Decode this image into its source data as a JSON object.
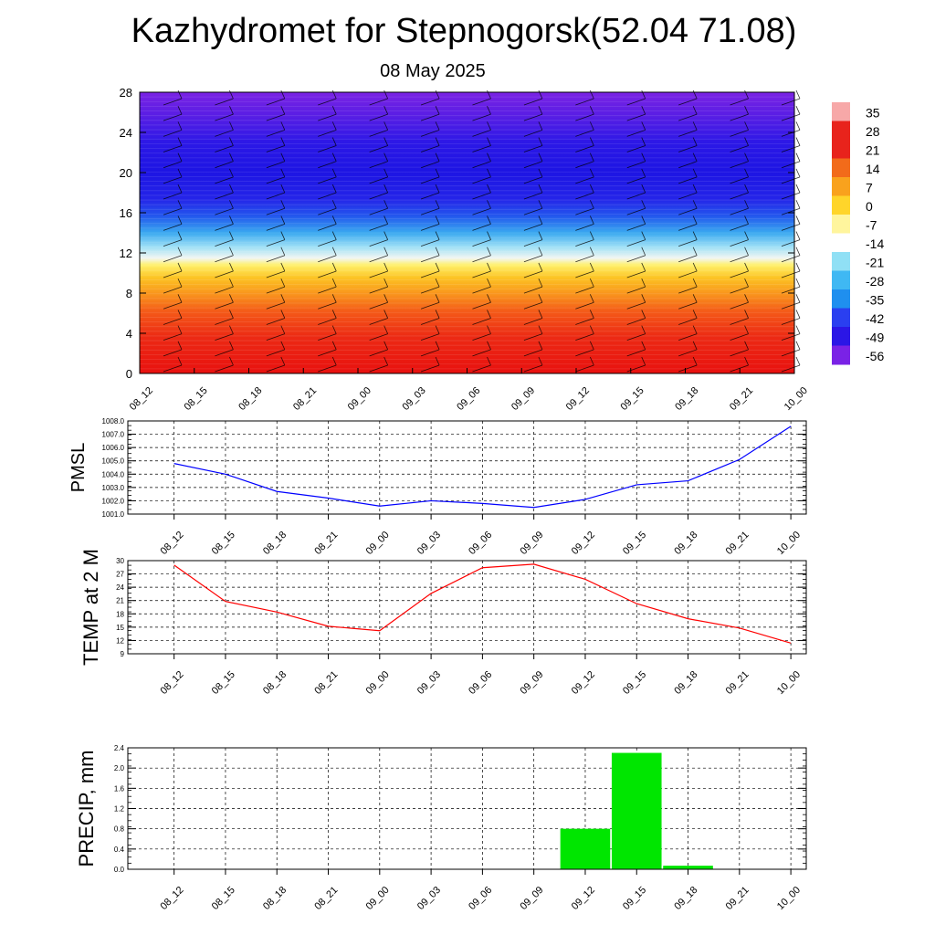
{
  "header": {
    "title": "Kazhydromet for Stepnogorsk(52.04 71.08)",
    "date": "08 May 2025"
  },
  "chart_data": [
    {
      "type": "heatmap",
      "name": "vertical-section",
      "y_ticks": [
        "0",
        "4",
        "8",
        "12",
        "16",
        "20",
        "24",
        "28"
      ],
      "ylim": [
        0,
        28
      ],
      "x_ticks": [
        "08_12",
        "08_15",
        "08_18",
        "08_21",
        "09_00",
        "09_03",
        "09_06",
        "09_09",
        "09_12",
        "09_15",
        "09_18",
        "09_21",
        "10_00"
      ],
      "colorbar_labels": [
        "35",
        "28",
        "21",
        "14",
        "7",
        "0",
        "-7",
        "-14",
        "-21",
        "-28",
        "-35",
        "-42",
        "-49",
        "-56"
      ],
      "colorbar_colors": [
        "#f7a8a8",
        "#e8231c",
        "#e8231c",
        "#f26b1a",
        "#f9a21d",
        "#ffd52a",
        "#fff59d",
        "#ffffff",
        "#90e0f5",
        "#3fb8f3",
        "#1f8fef",
        "#2a3ff0",
        "#2b16e6",
        "#7a22e6"
      ]
    },
    {
      "type": "line",
      "name": "pmsl",
      "ylabel": "PMSL",
      "x": [
        "08_12",
        "08_15",
        "08_18",
        "08_21",
        "09_00",
        "09_03",
        "09_06",
        "09_09",
        "09_12",
        "09_15",
        "09_18",
        "09_21",
        "10_00"
      ],
      "values": [
        1004.8,
        1004.0,
        1002.7,
        1002.2,
        1001.6,
        1002.0,
        1001.8,
        1001.5,
        1002.1,
        1003.2,
        1003.5,
        1005.1,
        1007.6
      ],
      "ylim": [
        1001.0,
        1008.0
      ],
      "y_ticks": [
        "1001.0",
        "1002.0",
        "1003.0",
        "1004.0",
        "1005.0",
        "1006.0",
        "1007.0",
        "1008.0"
      ],
      "color": "#0000ff"
    },
    {
      "type": "line",
      "name": "temp",
      "ylabel": "TEMP at 2 M",
      "x": [
        "08_12",
        "08_15",
        "08_18",
        "08_21",
        "09_00",
        "09_03",
        "09_06",
        "09_09",
        "09_12",
        "09_15",
        "09_18",
        "09_21",
        "10_00"
      ],
      "values": [
        29.0,
        20.8,
        18.4,
        15.2,
        14.2,
        22.6,
        28.4,
        29.2,
        25.8,
        20.3,
        16.9,
        14.8,
        11.4
      ],
      "ylim": [
        9,
        30
      ],
      "y_ticks": [
        "9",
        "12",
        "15",
        "18",
        "21",
        "24",
        "27",
        "30"
      ],
      "color": "#ff0000"
    },
    {
      "type": "bar",
      "name": "precip",
      "ylabel": "PRECIP, mm",
      "categories": [
        "08_12",
        "08_15",
        "08_18",
        "08_21",
        "09_00",
        "09_03",
        "09_06",
        "09_09",
        "09_12",
        "09_15",
        "09_18",
        "09_21",
        "10_00"
      ],
      "values": [
        0,
        0,
        0,
        0,
        0,
        0,
        0,
        0,
        0.8,
        2.3,
        0.07,
        0,
        0
      ],
      "ylim": [
        0,
        2.4
      ],
      "y_ticks": [
        "0.0",
        "0.4",
        "0.8",
        "1.2",
        "1.6",
        "2.0",
        "2.4"
      ],
      "color": "#00e600"
    }
  ]
}
